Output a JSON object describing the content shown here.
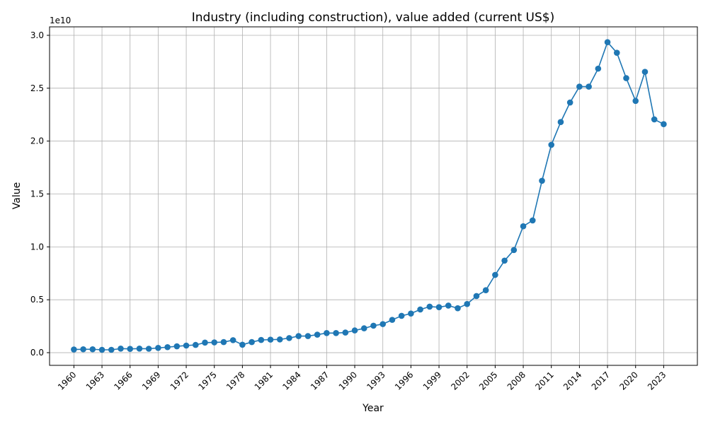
{
  "chart_data": {
    "type": "line",
    "title": "Industry (including construction), value added (current US$)",
    "xlabel": "Year",
    "ylabel": "Value",
    "y_offset_text": "1e10",
    "xlim": [
      1957.4,
      2026.6
    ],
    "ylim": [
      -1200000000,
      30800000000
    ],
    "x_ticks": [
      1960,
      1963,
      1966,
      1969,
      1972,
      1975,
      1978,
      1981,
      1984,
      1987,
      1990,
      1993,
      1996,
      1999,
      2002,
      2005,
      2008,
      2011,
      2014,
      2017,
      2020,
      2023
    ],
    "y_ticks": [
      0,
      5000000000,
      10000000000,
      15000000000,
      20000000000,
      25000000000,
      30000000000
    ],
    "y_tick_labels": [
      "0.0",
      "0.5",
      "1.0",
      "1.5",
      "2.0",
      "2.5",
      "3.0"
    ],
    "grid": true,
    "color": "#1f77b4",
    "marker": "circle",
    "x": [
      1960,
      1961,
      1962,
      1963,
      1964,
      1965,
      1966,
      1967,
      1968,
      1969,
      1970,
      1971,
      1972,
      1973,
      1974,
      1975,
      1976,
      1977,
      1978,
      1979,
      1980,
      1981,
      1982,
      1983,
      1984,
      1985,
      1986,
      1987,
      1988,
      1989,
      1990,
      1991,
      1992,
      1993,
      1994,
      1995,
      1996,
      1997,
      1998,
      1999,
      2000,
      2001,
      2002,
      2003,
      2004,
      2005,
      2006,
      2007,
      2008,
      2009,
      2010,
      2011,
      2012,
      2013,
      2014,
      2015,
      2016,
      2017,
      2018,
      2019,
      2020,
      2021,
      2022,
      2023
    ],
    "y": [
      300000000,
      320000000,
      320000000,
      270000000,
      270000000,
      380000000,
      360000000,
      380000000,
      370000000,
      450000000,
      520000000,
      600000000,
      670000000,
      730000000,
      950000000,
      970000000,
      1000000000,
      1180000000,
      750000000,
      1000000000,
      1200000000,
      1230000000,
      1250000000,
      1380000000,
      1570000000,
      1570000000,
      1700000000,
      1850000000,
      1850000000,
      1900000000,
      2100000000,
      2300000000,
      2550000000,
      2700000000,
      3100000000,
      3480000000,
      3700000000,
      4080000000,
      4350000000,
      4300000000,
      4450000000,
      4200000000,
      4600000000,
      5350000000,
      5900000000,
      7350000000,
      8700000000,
      9700000000,
      11950000000,
      12500000000,
      16250000000,
      19650000000,
      21800000000,
      23650000000,
      25150000000,
      25150000000,
      26850000000,
      29350000000,
      28350000000,
      25950000000,
      23800000000,
      26550000000,
      22050000000,
      21600000000
    ]
  }
}
